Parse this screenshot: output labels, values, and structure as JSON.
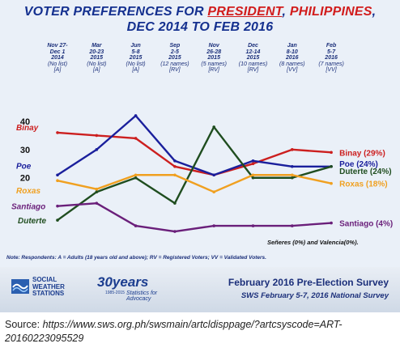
{
  "title": {
    "line1_pre": "VOTER PREFERENCES FOR ",
    "line1_emph": "PRESIDENT",
    "line1_sep": ", ",
    "line1_country": "PHILIPPINES",
    "line1_end": ",",
    "line2": "DEC 2014 TO FEB 2016"
  },
  "columns": [
    {
      "date": "Nov 27-\nDec 1\n2014",
      "sub": "(No list)\n[A]"
    },
    {
      "date": "Mar\n20-23\n2015",
      "sub": "(No list)\n[A]"
    },
    {
      "date": "Jun\n5-8\n2015",
      "sub": "(No list)\n[A]"
    },
    {
      "date": "Sep\n2-5\n2015",
      "sub": "(12 names)\n[RV]"
    },
    {
      "date": "Nov\n26-28\n2015",
      "sub": "(5 names)\n[RV]"
    },
    {
      "date": "Dec\n12-14\n2015",
      "sub": "(10 names)\n[RV]"
    },
    {
      "date": "Jan\n8-10\n2016",
      "sub": "(8 names)\n[VV]"
    },
    {
      "date": "Feb\n5-7\n2016",
      "sub": "(7 names)\n[VV]"
    }
  ],
  "chart_data": {
    "type": "line",
    "title": "VOTER PREFERENCES FOR PRESIDENT, PHILIPPINES, DEC 2014 TO FEB 2016",
    "y_ticks": [
      20,
      30,
      40
    ],
    "ylim": [
      -3,
      44
    ],
    "grid": false,
    "series": [
      {
        "name": "Binay",
        "color": "#cc1f1f",
        "start_label": "Binay",
        "end_label": "Binay (29%)",
        "values": [
          36,
          35,
          34,
          24,
          21,
          25,
          30,
          29
        ]
      },
      {
        "name": "Poe",
        "color": "#1a1f9c",
        "start_label": "Poe",
        "end_label": "Poe (24%)",
        "values": [
          21,
          30,
          42,
          26,
          21,
          26,
          24,
          24
        ]
      },
      {
        "name": "Duterte",
        "color": "#1f4d1f",
        "start_label": "Duterte",
        "end_label": "Duterte (24%)",
        "values": [
          5,
          15,
          20,
          11,
          38,
          20,
          20,
          24
        ]
      },
      {
        "name": "Roxas",
        "color": "#f0a020",
        "start_label": "Roxas",
        "end_label": "Roxas (18%)",
        "values": [
          19,
          16,
          21,
          21,
          15,
          21,
          21,
          18
        ]
      },
      {
        "name": "Santiago",
        "color": "#6a1f7a",
        "start_label": "Santiago",
        "end_label": "Santiago (4%)",
        "values": [
          10,
          11,
          3,
          1,
          3,
          3,
          3,
          4
        ]
      }
    ],
    "annotation": "Señeres (0%) and Valencia(0%)."
  },
  "note": "Note: Respondents: A = Adults (18 years old and above); RV = Registered Voters; VV = Validated Voters.",
  "footer": {
    "org_line1": "SOCIAL",
    "org_line2": "WEATHER",
    "org_line3": "STATIONS",
    "anniv_main": "30years",
    "anniv_years": "1985-2015",
    "anniv_sub": "Statistics for Advocacy",
    "survey_title": "February 2016 Pre-Election Survey",
    "survey_sub": "SWS February 5-7, 2016 National Survey"
  },
  "source": {
    "label": "Source: ",
    "url": "https://www.sws.org.ph/swsmain/artcldisppage/?artcsyscode=ART-20160223095529"
  },
  "colors": {
    "title_blue": "#14308f",
    "title_red": "#d11c1c",
    "panel_bg": "#eaf0f8"
  }
}
